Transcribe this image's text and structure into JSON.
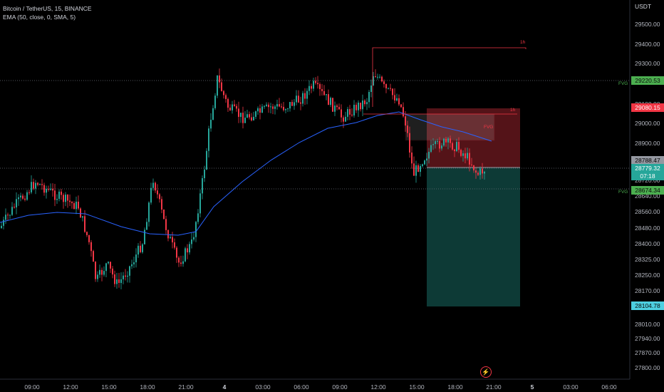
{
  "header": {
    "symbol_line": "Bitcoin / TetherUS, 15, BINANCE",
    "indicator_line": "EMA (50, close, 0, SMA, 5)",
    "currency": "USDT"
  },
  "price_axis": {
    "ticks": [
      "29500.00",
      "29400.00",
      "29300.00",
      "29100.00",
      "29000.00",
      "28900.00",
      "28720.00",
      "28640.00",
      "28560.00",
      "28480.00",
      "28400.00",
      "28325.00",
      "28250.00",
      "28170.00",
      "28010.00",
      "27940.00",
      "27870.00",
      "27800.00"
    ]
  },
  "time_axis": {
    "ticks": [
      "09:00",
      "12:00",
      "15:00",
      "18:00",
      "21:00",
      "4",
      "03:00",
      "06:00",
      "09:00",
      "12:00",
      "15:00",
      "18:00",
      "21:00",
      "5",
      "03:00",
      "06:00"
    ]
  },
  "price_tags": {
    "fvg_high": "29220.53",
    "red_level": "29080.15",
    "stop_level": "28788.47",
    "current_price": "28779.32",
    "countdown": "07:18",
    "fvg_low": "28674.34",
    "target_level": "28104.78"
  },
  "annotations": {
    "fvg_label": "FVG",
    "high_label_1": "1h",
    "high_label_2": "1h",
    "box_label": "FVG"
  },
  "colors": {
    "bull": "#26a69a",
    "bear": "#f23645",
    "ema": "#2962ff",
    "short_stop_zone": "#f23645",
    "short_target_zone": "#26a69a"
  },
  "icons": {
    "replay": "lightning-icon"
  }
}
